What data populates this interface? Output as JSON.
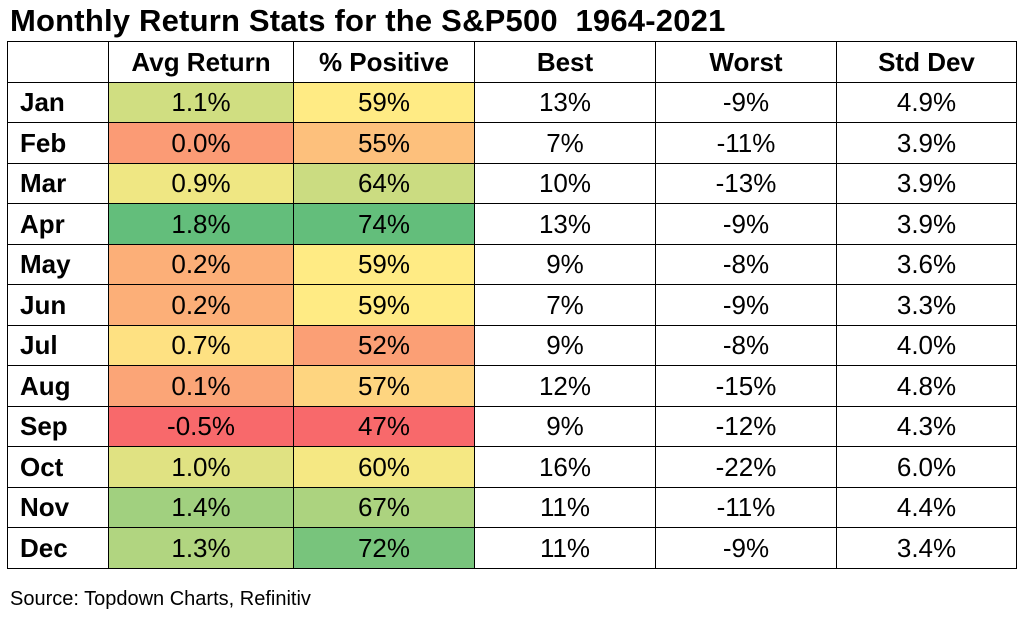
{
  "title": "Monthly Return Stats for the S&P500  1964-2021",
  "source": "Source: Topdown Charts, Refinitiv",
  "chart_data": {
    "type": "table",
    "title": "Monthly Return Stats for the S&P500  1964-2021",
    "columns": [
      "Avg Return",
      "% Positive",
      "Best",
      "Worst",
      "Std Dev"
    ],
    "heatmap_columns": [
      "Avg Return",
      "% Positive"
    ],
    "color_scale": {
      "low": "#f8696b",
      "mid": "#ffeb84",
      "high": "#63be7b"
    },
    "rows": [
      {
        "month": "Jan",
        "avg_return": "1.1%",
        "pct_positive": "59%",
        "best": "13%",
        "worst": "-9%",
        "std_dev": "4.9%",
        "avg_value": 1.1,
        "pos_value": 59
      },
      {
        "month": "Feb",
        "avg_return": "0.0%",
        "pct_positive": "55%",
        "best": "7%",
        "worst": "-11%",
        "std_dev": "3.9%",
        "avg_value": 0.0,
        "pos_value": 55
      },
      {
        "month": "Mar",
        "avg_return": "0.9%",
        "pct_positive": "64%",
        "best": "10%",
        "worst": "-13%",
        "std_dev": "3.9%",
        "avg_value": 0.9,
        "pos_value": 64
      },
      {
        "month": "Apr",
        "avg_return": "1.8%",
        "pct_positive": "74%",
        "best": "13%",
        "worst": "-9%",
        "std_dev": "3.9%",
        "avg_value": 1.8,
        "pos_value": 74
      },
      {
        "month": "May",
        "avg_return": "0.2%",
        "pct_positive": "59%",
        "best": "9%",
        "worst": "-8%",
        "std_dev": "3.6%",
        "avg_value": 0.2,
        "pos_value": 59
      },
      {
        "month": "Jun",
        "avg_return": "0.2%",
        "pct_positive": "59%",
        "best": "7%",
        "worst": "-9%",
        "std_dev": "3.3%",
        "avg_value": 0.2,
        "pos_value": 59
      },
      {
        "month": "Jul",
        "avg_return": "0.7%",
        "pct_positive": "52%",
        "best": "9%",
        "worst": "-8%",
        "std_dev": "4.0%",
        "avg_value": 0.7,
        "pos_value": 52
      },
      {
        "month": "Aug",
        "avg_return": "0.1%",
        "pct_positive": "57%",
        "best": "12%",
        "worst": "-15%",
        "std_dev": "4.8%",
        "avg_value": 0.1,
        "pos_value": 57
      },
      {
        "month": "Sep",
        "avg_return": "-0.5%",
        "pct_positive": "47%",
        "best": "9%",
        "worst": "-12%",
        "std_dev": "4.3%",
        "avg_value": -0.5,
        "pos_value": 47
      },
      {
        "month": "Oct",
        "avg_return": "1.0%",
        "pct_positive": "60%",
        "best": "16%",
        "worst": "-22%",
        "std_dev": "6.0%",
        "avg_value": 1.0,
        "pos_value": 60
      },
      {
        "month": "Nov",
        "avg_return": "1.4%",
        "pct_positive": "67%",
        "best": "11%",
        "worst": "-11%",
        "std_dev": "4.4%",
        "avg_value": 1.4,
        "pos_value": 67
      },
      {
        "month": "Dec",
        "avg_return": "1.3%",
        "pct_positive": "72%",
        "best": "11%",
        "worst": "-9%",
        "std_dev": "3.4%",
        "avg_value": 1.3,
        "pos_value": 72
      }
    ]
  }
}
